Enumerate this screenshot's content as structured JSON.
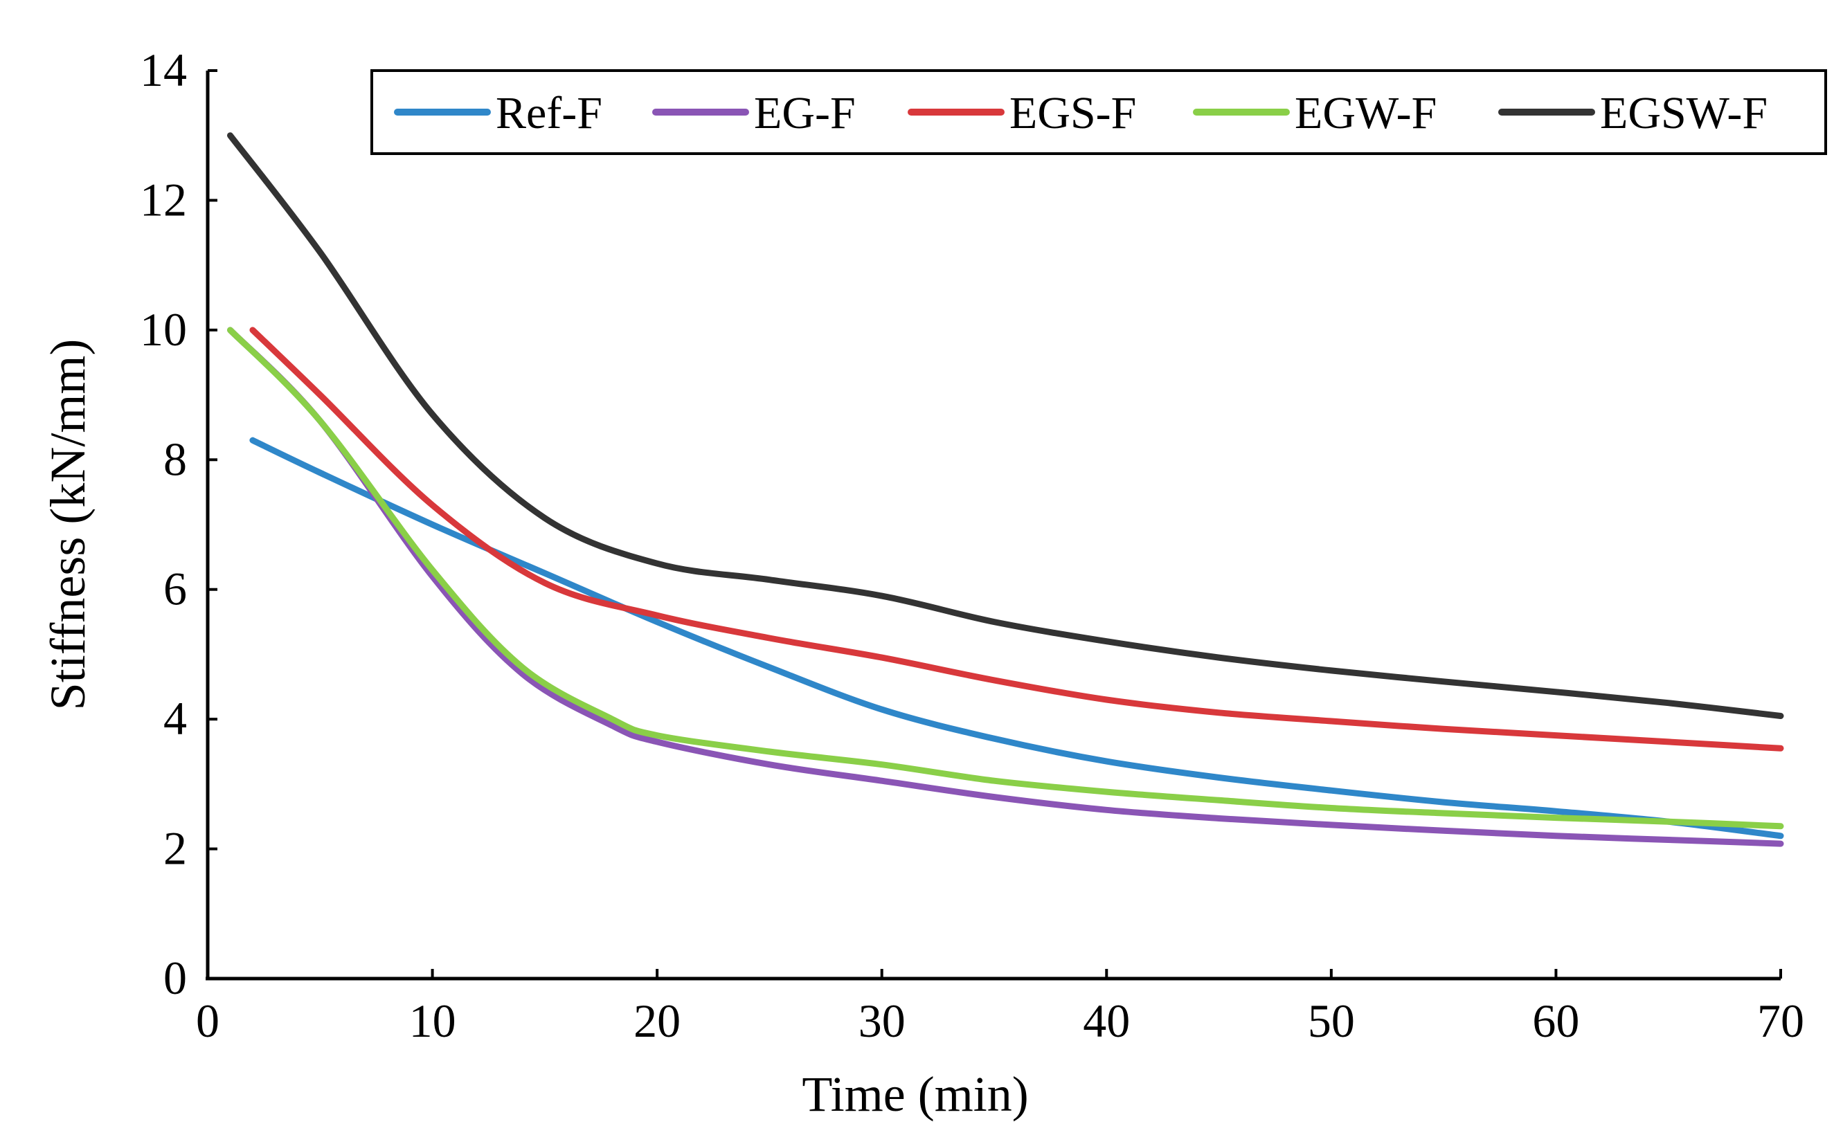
{
  "chart_data": {
    "type": "line",
    "title": "",
    "xlabel": "Time (min)",
    "ylabel": "Stiffness (kN/mm)",
    "xlim": [
      0,
      70
    ],
    "ylim": [
      0,
      14
    ],
    "xticks": [
      0,
      10,
      20,
      30,
      40,
      50,
      60,
      70
    ],
    "yticks": [
      0,
      2,
      4,
      6,
      8,
      10,
      12,
      14
    ],
    "grid": false,
    "legend_position": "top",
    "series": [
      {
        "name": "Ref-F",
        "color": "#2F87C9",
        "x": [
          2,
          5,
          10,
          15,
          20,
          25,
          30,
          35,
          40,
          45,
          50,
          55,
          60,
          65,
          70
        ],
        "y": [
          8.3,
          7.8,
          7.0,
          6.25,
          5.5,
          4.8,
          4.15,
          3.7,
          3.35,
          3.1,
          2.9,
          2.72,
          2.58,
          2.42,
          2.2
        ]
      },
      {
        "name": "EG-F",
        "color": "#8A55B5",
        "x": [
          1,
          5,
          10,
          14,
          18,
          20,
          25,
          30,
          35,
          40,
          45,
          50,
          55,
          60,
          65,
          70
        ],
        "y": [
          10.0,
          8.6,
          6.2,
          4.7,
          3.9,
          3.65,
          3.3,
          3.05,
          2.8,
          2.6,
          2.47,
          2.37,
          2.28,
          2.2,
          2.14,
          2.08
        ]
      },
      {
        "name": "EGS-F",
        "color": "#D8383B",
        "x": [
          2,
          5,
          10,
          15,
          20,
          25,
          30,
          35,
          40,
          45,
          50,
          55,
          60,
          65,
          70
        ],
        "y": [
          10.0,
          9.0,
          7.3,
          6.1,
          5.6,
          5.25,
          4.95,
          4.6,
          4.3,
          4.1,
          3.97,
          3.85,
          3.75,
          3.65,
          3.55
        ]
      },
      {
        "name": "EGW-F",
        "color": "#8ACF48",
        "x": [
          1,
          5,
          10,
          14,
          18,
          20,
          25,
          30,
          35,
          40,
          45,
          50,
          55,
          60,
          65,
          70
        ],
        "y": [
          10.0,
          8.6,
          6.3,
          4.8,
          4.0,
          3.75,
          3.5,
          3.3,
          3.05,
          2.88,
          2.75,
          2.63,
          2.55,
          2.48,
          2.42,
          2.35
        ]
      },
      {
        "name": "EGSW-F",
        "color": "#333333",
        "x": [
          1,
          5,
          10,
          15,
          20,
          25,
          30,
          35,
          40,
          45,
          50,
          55,
          60,
          65,
          70
        ],
        "y": [
          13.0,
          11.2,
          8.7,
          7.1,
          6.4,
          6.15,
          5.9,
          5.5,
          5.2,
          4.95,
          4.75,
          4.58,
          4.42,
          4.25,
          4.05
        ]
      }
    ]
  }
}
